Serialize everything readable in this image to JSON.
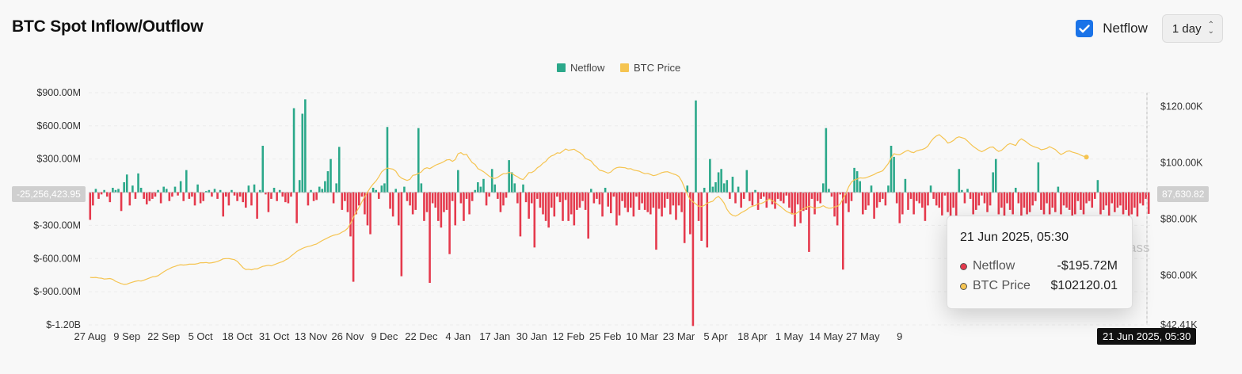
{
  "header": {
    "title": "BTC Spot Inflow/Outflow",
    "netflow_checkbox_label": "Netflow",
    "interval_label": "1 day"
  },
  "colors": {
    "positive": "#2ba88a",
    "negative": "#e5394c",
    "price": "#f5c451",
    "checkbox": "#1a73e8"
  },
  "tooltip": {
    "date": "21 Jun 2025, 05:30",
    "netflow_label": "Netflow",
    "netflow_value": "-$195.72M",
    "price_label": "BTC Price",
    "price_value": "$102120.01"
  },
  "crosshair": {
    "left_value": "-25,256,423.95",
    "right_value": "87,630.82",
    "x_label": "21 Jun 2025, 05:30"
  },
  "watermark": "ass",
  "chart_data": {
    "type": "bar",
    "legend": [
      "Netflow",
      "BTC Price"
    ],
    "legend_position": "top-center",
    "left_axis": {
      "ticks": [
        "$900.00M",
        "$600.00M",
        "$300.00M",
        "$-300.00M",
        "$-600.00M",
        "$-900.00M",
        "$-1.20B"
      ],
      "tick_values": [
        900,
        600,
        300,
        -300,
        -600,
        -900,
        -1200
      ],
      "range": [
        -1200,
        900
      ],
      "unit": "USD millions"
    },
    "right_axis": {
      "ticks": [
        "$120.00K",
        "$100.00K",
        "$80.00K",
        "$60.00K",
        "$42.41K"
      ],
      "tick_values": [
        120,
        100,
        80,
        60,
        42.41
      ],
      "range": [
        42.41,
        125
      ],
      "unit": "USD thousands"
    },
    "x_ticks": [
      "27 Aug",
      "9 Sep",
      "22 Sep",
      "5 Oct",
      "18 Oct",
      "31 Oct",
      "13 Nov",
      "26 Nov",
      "9 Dec",
      "22 Dec",
      "4 Jan",
      "17 Jan",
      "30 Jan",
      "12 Feb",
      "25 Feb",
      "10 Mar",
      "23 Mar",
      "5 Apr",
      "18 Apr",
      "1 May",
      "14 May",
      "27 May",
      "9"
    ],
    "x_tick_index": [
      0,
      13,
      26,
      39,
      52,
      65,
      78,
      91,
      104,
      117,
      130,
      143,
      156,
      169,
      182,
      195,
      208,
      221,
      234,
      247,
      260,
      273,
      286
    ],
    "grid": true,
    "series": [
      {
        "name": "Netflow",
        "values": [
          -250,
          -120,
          30,
          -60,
          -20,
          20,
          -40,
          -90,
          40,
          20,
          30,
          -170,
          90,
          160,
          -120,
          60,
          -60,
          170,
          40,
          -60,
          -110,
          -80,
          -60,
          -40,
          20,
          -100,
          50,
          30,
          -80,
          -40,
          50,
          -30,
          100,
          -80,
          200,
          -60,
          -40,
          -120,
          70,
          -100,
          -80,
          10,
          20,
          -40,
          30,
          -60,
          20,
          -220,
          -40,
          -120,
          20,
          -30,
          -80,
          -40,
          -90,
          -140,
          60,
          -120,
          70,
          -240,
          20,
          420,
          -20,
          -180,
          -60,
          40,
          -80,
          20,
          -40,
          -90,
          -100,
          -40,
          760,
          -280,
          110,
          710,
          840,
          -120,
          20,
          -80,
          -70,
          50,
          30,
          100,
          190,
          300,
          -100,
          80,
          410,
          -160,
          -80,
          -180,
          -400,
          -810,
          -200,
          -120,
          -40,
          -200,
          -300,
          -380,
          40,
          20,
          -60,
          60,
          80,
          590,
          -150,
          -220,
          30,
          -300,
          -760,
          50,
          -80,
          -120,
          -200,
          -160,
          580,
          80,
          -260,
          -180,
          -820,
          -100,
          -140,
          -260,
          -320,
          -180,
          -160,
          -560,
          -80,
          -300,
          200,
          -100,
          -260,
          -60,
          -200,
          -80,
          20,
          90,
          50,
          120,
          -120,
          -40,
          210,
          70,
          -60,
          -180,
          -120,
          -50,
          290,
          180,
          80,
          -100,
          -400,
          70,
          -90,
          -240,
          -100,
          -500,
          -60,
          -140,
          -200,
          -260,
          -320,
          -140,
          -220,
          -40,
          -90,
          -260,
          -70,
          -260,
          -200,
          -300,
          -160,
          -140,
          -80,
          -160,
          -420,
          30,
          -100,
          -60,
          -110,
          -220,
          40,
          -130,
          -190,
          -40,
          -300,
          -210,
          -80,
          -140,
          -180,
          -140,
          -220,
          -40,
          -160,
          -100,
          -160,
          -180,
          -200,
          -140,
          -520,
          -150,
          -220,
          -140,
          -60,
          -200,
          -120,
          -250,
          -120,
          -180,
          -460,
          60,
          -380,
          -1210,
          830,
          -260,
          -440,
          40,
          -500,
          300,
          50,
          90,
          180,
          210,
          80,
          110,
          -60,
          140,
          -100,
          50,
          -140,
          -60,
          200,
          -80,
          -120,
          20,
          -160,
          -60,
          -40,
          -140,
          -60,
          -110,
          -150,
          -60,
          -80,
          -100,
          -30,
          -140,
          -200,
          -310,
          -110,
          -280,
          -170,
          -160,
          -540,
          -60,
          -200,
          -80,
          -100,
          80,
          580,
          30,
          -40,
          -220,
          -300,
          -20,
          -700,
          -100,
          -180,
          -80,
          220,
          190,
          100,
          -200,
          -160,
          -120,
          60,
          -240,
          -140,
          -90,
          -60,
          -120,
          60,
          420,
          320,
          -100,
          -280,
          -200,
          120,
          -160,
          -60,
          -200,
          -80,
          -100,
          -140,
          -260,
          -120,
          60,
          -60,
          -120,
          -140,
          -210,
          -30,
          -180,
          -280,
          -140,
          -260,
          210,
          20,
          -100,
          30,
          -60,
          -200,
          -160,
          -120,
          -30,
          -100,
          -180,
          -120,
          180,
          300,
          -200,
          -140,
          -260,
          -100,
          -160,
          -200,
          40,
          -100,
          -220,
          -140,
          -200,
          -180,
          -120,
          -80,
          270,
          -160,
          -200,
          -100,
          -200,
          -140,
          -180,
          50,
          -200,
          -120,
          -140,
          -160,
          -240,
          -200,
          -80,
          -160,
          -200,
          -100,
          -80,
          -140,
          -60,
          110,
          -200,
          -160,
          -120,
          -260,
          -100,
          -180,
          -140,
          -120,
          -200,
          -160,
          -260,
          -200,
          -140,
          -220,
          -100,
          -120,
          -60,
          -196
        ],
        "color": "#e5394c"
      },
      {
        "name": "BTC Price",
        "values": [
          59.3,
          59.2,
          59.3,
          59.1,
          59.0,
          58.7,
          58.8,
          58.9,
          58.6,
          57.9,
          57.5,
          57.1,
          56.8,
          56.9,
          57.3,
          57.6,
          57.9,
          58.1,
          58.0,
          58.3,
          58.7,
          59.1,
          59.5,
          59.6,
          59.9,
          60.6,
          61.3,
          61.9,
          62.4,
          62.9,
          63.2,
          63.6,
          63.8,
          63.7,
          63.8,
          64.0,
          64.0,
          64.0,
          64.2,
          64.5,
          64.5,
          64.6,
          64.4,
          64.5,
          64.7,
          65.0,
          65.4,
          65.9,
          66.0,
          66.0,
          65.8,
          65.6,
          65.0,
          63.9,
          62.8,
          62.1,
          62.2,
          62.0,
          62.3,
          62.3,
          62.8,
          63.2,
          63.4,
          63.6,
          63.4,
          63.8,
          64.2,
          64.6,
          64.9,
          65.5,
          66.0,
          66.9,
          67.7,
          68.5,
          69.1,
          69.6,
          70.0,
          70.3,
          70.5,
          70.9,
          71.2,
          71.8,
          72.4,
          72.9,
          73.4,
          73.9,
          74.3,
          74.5,
          74.8,
          75.4,
          75.9,
          76.8,
          78.5,
          80.6,
          82.5,
          84.2,
          86.1,
          88.0,
          89.6,
          91.2,
          92.5,
          93.6,
          95.1,
          96.8,
          97.7,
          98.2,
          98.0,
          97.8,
          97.1,
          95.5,
          94.6,
          94.2,
          93.8,
          94.2,
          95.6,
          95.8,
          96.3,
          96.8,
          97.9,
          98.3,
          98.0,
          98.6,
          99.2,
          99.6,
          100.0,
          100.5,
          101.1,
          101.2,
          100.6,
          101.2,
          103.3,
          103.7,
          102.9,
          103.1,
          101.5,
          100.1,
          99.5,
          98.0,
          97.5,
          96.9,
          96.1,
          95.3,
          94.7,
          94.5,
          94.9,
          95.6,
          96.2,
          96.2,
          96.7,
          96.3,
          95.6,
          95.1,
          94.4,
          94.1,
          95.3,
          96.6,
          96.6,
          97.2,
          98.3,
          98.9,
          99.9,
          100.6,
          101.8,
          102.5,
          102.9,
          103.6,
          103.5,
          104.2,
          105.0,
          104.5,
          104.7,
          104.9,
          104.2,
          103.7,
          102.9,
          101.6,
          101.2,
          100.7,
          99.4,
          98.5,
          97.4,
          97.2,
          96.8,
          96.4,
          96.8,
          97.8,
          98.3,
          98.5,
          98.4,
          98.3,
          97.9,
          98.0,
          97.5,
          97.3,
          97.1,
          96.6,
          96.2,
          96.3,
          95.9,
          95.5,
          95.7,
          96.1,
          96.6,
          96.8,
          96.9,
          96.5,
          96.1,
          95.8,
          95.2,
          93.6,
          91.2,
          88.9,
          87.0,
          86.2,
          85.4,
          84.6,
          84.5,
          84.9,
          85.7,
          86.1,
          86.4,
          87.5,
          88.1,
          87.1,
          85.7,
          83.5,
          82.1,
          81.4,
          81.1,
          81.6,
          82.3,
          82.8,
          83.4,
          84.2,
          84.6,
          84.9,
          85.5,
          85.6,
          86.0,
          86.6,
          87.2,
          86.6,
          86.0,
          85.2,
          84.5,
          83.6,
          82.8,
          82.3,
          82.0,
          81.8,
          82.4,
          83.1,
          83.7,
          84.2,
          84.6,
          84.3,
          83.9,
          84.1,
          84.3,
          84.8,
          84.2,
          83.9,
          84.0,
          84.4,
          84.6,
          85.4,
          87.3,
          89.1,
          91.5,
          93.2,
          94.0,
          94.3,
          94.7,
          94.6,
          94.7,
          95.1,
          95.5,
          95.9,
          96.5,
          96.8,
          97.2,
          98.5,
          99.8,
          101.8,
          103.3,
          103.0,
          102.9,
          103.5,
          104.1,
          104.5,
          103.9,
          103.7,
          104.3,
          104.6,
          104.8,
          105.2,
          106.0,
          107.6,
          108.8,
          109.6,
          110.1,
          109.2,
          108.4,
          107.1,
          107.4,
          108.0,
          108.9,
          109.3,
          109.0,
          108.7,
          107.8,
          106.8,
          105.9,
          105.2,
          104.5,
          104.0,
          104.5,
          105.1,
          105.6,
          105.7,
          104.8,
          104.1,
          104.5,
          105.4,
          106.4,
          106.9,
          106.6,
          106.2,
          107.8,
          108.6,
          108.0,
          107.3,
          106.5,
          106.0,
          105.6,
          105.3,
          104.7,
          104.9,
          105.2,
          105.8,
          105.3,
          104.8,
          103.8,
          103.0,
          103.5,
          104.1,
          104.3,
          103.9,
          103.6,
          103.3,
          102.8,
          102.4,
          102.1
        ],
        "color": "#f5c451"
      }
    ]
  }
}
